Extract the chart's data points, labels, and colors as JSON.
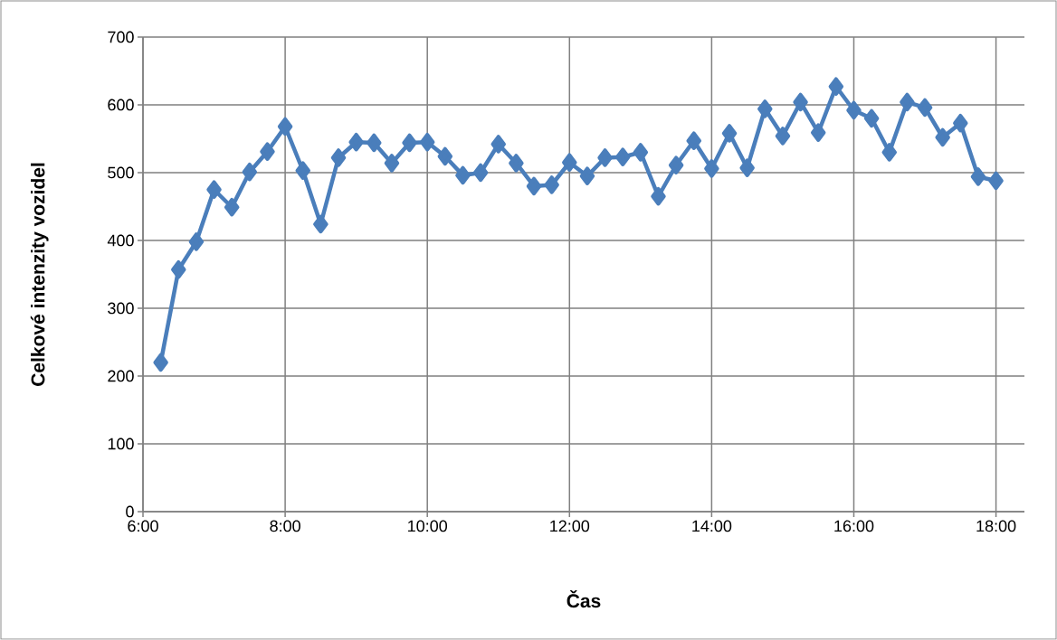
{
  "chart_data": {
    "type": "line",
    "xlabel": "Čas",
    "ylabel": "Celkové intenzity vozidel",
    "x": [
      6.25,
      6.5,
      6.75,
      7,
      7.25,
      7.5,
      7.75,
      8,
      8.25,
      8.5,
      8.75,
      9,
      9.25,
      9.5,
      9.75,
      10,
      10.25,
      10.5,
      10.75,
      11,
      11.25,
      11.5,
      11.75,
      12,
      12.25,
      12.5,
      12.75,
      13,
      13.25,
      13.5,
      13.75,
      14,
      14.25,
      14.5,
      14.75,
      15,
      15.25,
      15.5,
      15.75,
      16,
      16.25,
      16.5,
      16.75,
      17,
      17.25,
      17.5,
      17.75,
      18
    ],
    "series": [
      {
        "color": "#4a7ebb",
        "values": [
          220,
          357,
          398,
          475,
          449,
          501,
          531,
          568,
          503,
          424,
          522,
          545,
          544,
          514,
          544,
          545,
          524,
          496,
          500,
          542,
          514,
          480,
          482,
          515,
          495,
          522,
          523,
          530,
          465,
          511,
          547,
          506,
          558,
          507,
          594,
          554,
          604,
          559,
          627,
          592,
          580,
          530,
          604,
          596,
          552,
          573,
          494,
          488
        ]
      }
    ],
    "xlim": [
      6,
      18.4
    ],
    "xticks": [
      {
        "value": 6,
        "label": "6:00"
      },
      {
        "value": 8,
        "label": "8:00"
      },
      {
        "value": 10,
        "label": "10:00"
      },
      {
        "value": 12,
        "label": "12:00"
      },
      {
        "value": 14,
        "label": "14:00"
      },
      {
        "value": 16,
        "label": "16:00"
      },
      {
        "value": 18,
        "label": "18:00"
      }
    ],
    "ylim": [
      0,
      700
    ],
    "yticks": [
      0,
      100,
      200,
      300,
      400,
      500,
      600,
      700
    ],
    "grid": true,
    "marker": "diamond",
    "line_style": "solid"
  }
}
